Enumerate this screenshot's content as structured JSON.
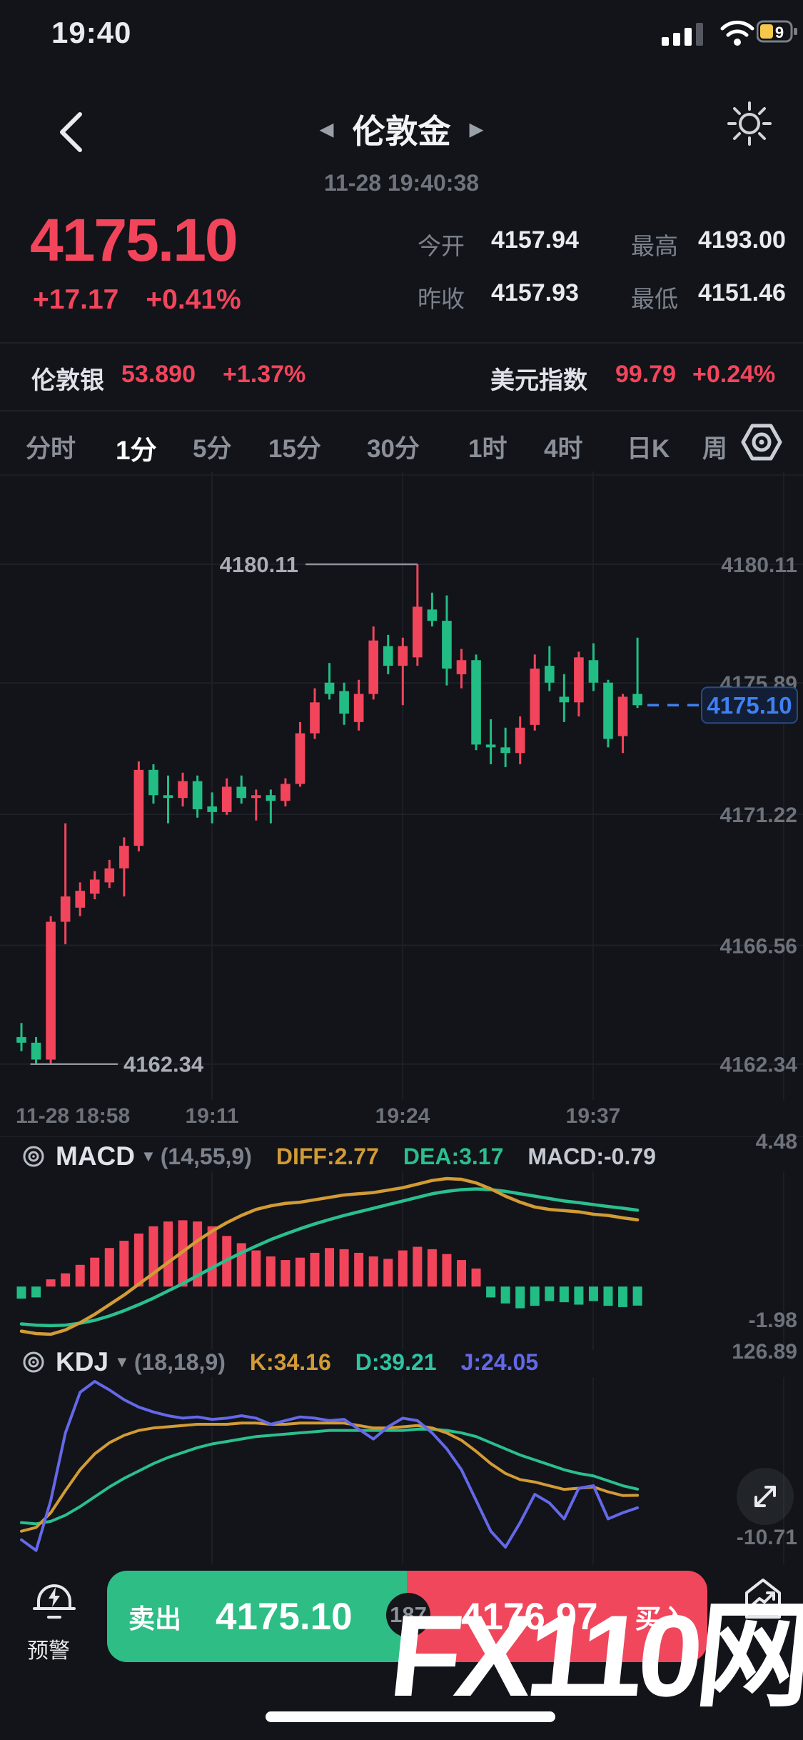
{
  "status_bar": {
    "time": "19:40",
    "battery_level": "9"
  },
  "nav": {
    "back": "‹",
    "prev_arrow": "◀",
    "next_arrow": "▶",
    "title": "伦敦金",
    "datetime": "11-28 19:40:38"
  },
  "quote": {
    "price": "4175.10",
    "change": "+17.17",
    "change_pct": "+0.41%",
    "stats": [
      {
        "label": "今开",
        "value": "4157.94"
      },
      {
        "label": "最高",
        "value": "4193.00"
      },
      {
        "label": "昨收",
        "value": "4157.93"
      },
      {
        "label": "最低",
        "value": "4151.46"
      }
    ]
  },
  "related": {
    "left_name": "伦敦银",
    "left_price": "53.890",
    "left_change": "+1.37%",
    "right_name": "美元指数",
    "right_price": "99.79",
    "right_change": "+0.24%"
  },
  "timeframes": {
    "items": [
      "分时",
      "1分",
      "5分",
      "15分",
      "30分",
      "1时",
      "4时",
      "日K",
      "周"
    ],
    "active": "1分"
  },
  "chart_data": {
    "type": "candlestick",
    "symbol": "伦敦金",
    "interval": "1分",
    "x_labels": [
      "11-28 18:58",
      "19:11",
      "19:24",
      "19:37"
    ],
    "y_axis_labels": [
      4180.11,
      4175.89,
      4171.22,
      4166.56,
      4162.34
    ],
    "high_annotation": 4180.11,
    "low_annotation": 4162.34,
    "current_price": 4175.1,
    "current_price_label": "4175.10",
    "candles": [
      [
        4163.3,
        4163.8,
        4162.8,
        4163.1
      ],
      [
        4163.1,
        4163.3,
        4162.34,
        4162.5
      ],
      [
        4162.5,
        4167.6,
        4162.34,
        4167.4
      ],
      [
        4167.4,
        4170.9,
        4166.6,
        4168.3
      ],
      [
        4167.9,
        4168.8,
        4167.6,
        4168.5
      ],
      [
        4168.4,
        4169.2,
        4168.2,
        4168.9
      ],
      [
        4168.8,
        4169.6,
        4168.6,
        4169.3
      ],
      [
        4169.3,
        4170.4,
        4168.3,
        4170.1
      ],
      [
        4170.1,
        4173.1,
        4169.9,
        4172.8
      ],
      [
        4172.8,
        4173.0,
        4171.6,
        4171.9
      ],
      [
        4171.9,
        4172.6,
        4170.9,
        4171.8
      ],
      [
        4171.8,
        4172.7,
        4171.5,
        4172.4
      ],
      [
        4172.4,
        4172.6,
        4171.1,
        4171.4
      ],
      [
        4171.5,
        4172.0,
        4170.9,
        4171.3
      ],
      [
        4171.3,
        4172.5,
        4171.2,
        4172.2
      ],
      [
        4172.2,
        4172.6,
        4171.6,
        4171.8
      ],
      [
        4171.8,
        4172.1,
        4171.0,
        4171.9
      ],
      [
        4171.9,
        4172.1,
        4170.9,
        4171.7
      ],
      [
        4171.7,
        4172.5,
        4171.5,
        4172.3
      ],
      [
        4172.3,
        4174.5,
        4172.2,
        4174.1
      ],
      [
        4174.1,
        4175.7,
        4173.9,
        4175.2
      ],
      [
        4175.9,
        4176.6,
        4175.3,
        4175.5
      ],
      [
        4175.6,
        4175.9,
        4174.4,
        4174.8
      ],
      [
        4174.5,
        4176.0,
        4174.2,
        4175.5
      ],
      [
        4175.5,
        4177.9,
        4175.3,
        4177.4
      ],
      [
        4177.2,
        4177.6,
        4176.2,
        4176.5
      ],
      [
        4176.5,
        4177.5,
        4175.1,
        4177.2
      ],
      [
        4176.8,
        4180.11,
        4176.5,
        4178.6
      ],
      [
        4178.5,
        4179.1,
        4177.9,
        4178.1
      ],
      [
        4178.1,
        4179.0,
        4175.8,
        4176.4
      ],
      [
        4176.2,
        4177.1,
        4175.7,
        4176.7
      ],
      [
        4176.7,
        4176.9,
        4173.5,
        4173.7
      ],
      [
        4173.7,
        4174.6,
        4173.0,
        4173.6
      ],
      [
        4173.6,
        4174.3,
        4172.9,
        4173.4
      ],
      [
        4173.4,
        4174.7,
        4173.0,
        4174.3
      ],
      [
        4174.4,
        4176.9,
        4174.2,
        4176.4
      ],
      [
        4176.5,
        4177.2,
        4175.6,
        4175.9
      ],
      [
        4175.4,
        4176.2,
        4174.5,
        4175.2
      ],
      [
        4175.2,
        4177.0,
        4174.7,
        4176.8
      ],
      [
        4176.7,
        4177.3,
        4175.6,
        4175.9
      ],
      [
        4175.9,
        4176.0,
        4173.6,
        4173.9
      ],
      [
        4174.0,
        4175.5,
        4173.4,
        4175.4
      ],
      [
        4175.5,
        4177.5,
        4175.0,
        4175.1
      ]
    ],
    "macd": {
      "range": [
        -1.98,
        4.48
      ],
      "histogram": [
        -0.5,
        -0.45,
        0.3,
        0.55,
        0.9,
        1.2,
        1.6,
        1.9,
        2.2,
        2.5,
        2.7,
        2.75,
        2.7,
        2.5,
        2.1,
        1.8,
        1.5,
        1.25,
        1.1,
        1.2,
        1.4,
        1.6,
        1.55,
        1.4,
        1.25,
        1.15,
        1.5,
        1.65,
        1.55,
        1.35,
        1.1,
        0.75,
        -0.45,
        -0.7,
        -0.9,
        -0.8,
        -0.6,
        -0.65,
        -0.75,
        -0.6,
        -0.8,
        -0.85,
        -0.79
      ],
      "dif": [
        -1.85,
        -1.95,
        -1.98,
        -1.8,
        -1.5,
        -1.15,
        -0.75,
        -0.35,
        0.1,
        0.55,
        1.0,
        1.45,
        1.9,
        2.3,
        2.65,
        2.95,
        3.2,
        3.35,
        3.45,
        3.5,
        3.6,
        3.7,
        3.8,
        3.85,
        3.9,
        4.0,
        4.1,
        4.25,
        4.4,
        4.48,
        4.45,
        4.3,
        4.05,
        3.75,
        3.5,
        3.3,
        3.2,
        3.15,
        3.1,
        3.0,
        2.95,
        2.85,
        2.77
      ],
      "dea": [
        -1.55,
        -1.6,
        -1.62,
        -1.6,
        -1.52,
        -1.4,
        -1.22,
        -1.0,
        -0.75,
        -0.48,
        -0.18,
        0.12,
        0.45,
        0.78,
        1.1,
        1.4,
        1.68,
        1.95,
        2.18,
        2.4,
        2.6,
        2.78,
        2.95,
        3.1,
        3.25,
        3.4,
        3.55,
        3.7,
        3.85,
        3.95,
        4.02,
        4.05,
        4.02,
        3.95,
        3.85,
        3.75,
        3.65,
        3.55,
        3.48,
        3.4,
        3.32,
        3.25,
        3.17
      ]
    },
    "kdj": {
      "range": [
        -10.71,
        126.89
      ],
      "k": [
        5,
        8,
        20,
        38,
        55,
        68,
        77,
        83,
        87,
        89,
        90,
        91,
        92,
        92,
        92,
        93,
        93,
        92,
        92,
        93,
        93,
        93,
        93,
        91,
        89,
        89,
        90,
        91,
        89,
        85,
        79,
        70,
        60,
        52,
        47,
        45,
        42,
        39,
        40,
        41,
        37,
        34,
        34.16
      ],
      "d": [
        12,
        11,
        13,
        18,
        25,
        33,
        41,
        48,
        54,
        60,
        65,
        69,
        73,
        76,
        78,
        80,
        82,
        83,
        84,
        85,
        86,
        87,
        87,
        87,
        87,
        87,
        87,
        88,
        88,
        87,
        85,
        82,
        77,
        72,
        67,
        63,
        59,
        55,
        52,
        50,
        46,
        42,
        39.21
      ],
      "j": [
        -2,
        -10.71,
        30,
        85,
        118,
        126.89,
        120,
        112,
        106,
        102,
        99,
        97,
        98,
        96,
        97,
        99,
        97,
        92,
        95,
        98,
        97,
        95,
        96,
        88,
        80,
        90,
        97,
        95,
        85,
        72,
        55,
        30,
        5,
        -8,
        12,
        35,
        28,
        15,
        40,
        42,
        15,
        20,
        24.05
      ]
    }
  },
  "macd_header": {
    "name": "MACD",
    "caret": "▼",
    "params": "(14,55,9)",
    "diff_label": "DIFF:2.77",
    "dea_label": "DEA:3.17",
    "macd_label": "MACD:-0.79",
    "max_label": "4.48",
    "min_label": "-1.98"
  },
  "kdj_header": {
    "name": "KDJ",
    "caret": "▼",
    "params": "(18,18,9)",
    "k_label": "K:34.16",
    "d_label": "D:39.21",
    "j_label": "J:24.05",
    "max_label": "126.89",
    "min_label": "-10.71"
  },
  "trade_bar": {
    "alert_label": "预警",
    "sell_label": "卖出",
    "sell_price": "4175.10",
    "spread": "187",
    "buy_price": "4176.97",
    "buy_label": "买入"
  },
  "watermark": "FX110网",
  "colors": {
    "up_red": "#f2455c",
    "down_green": "#22bd85",
    "button_green": "#2dbd85",
    "button_red": "#f0475c",
    "accent_blue": "#3f80f2",
    "dif_orange": "#d29b35",
    "dea_teal": "#2abf8e",
    "j_purple": "#6468e8",
    "axis_gray": "#6d727b",
    "battery_yellow": "#f5c84c"
  }
}
